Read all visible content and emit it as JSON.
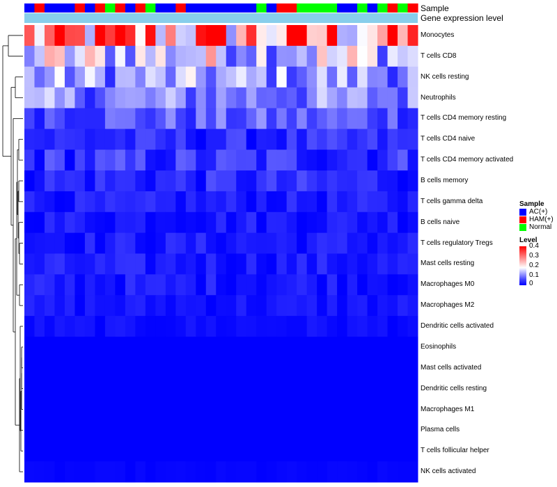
{
  "chart_data": {
    "type": "heatmap",
    "title": "",
    "column_annotation": {
      "name": "Sample",
      "levels": [
        "AC(+)",
        "HAM(+)",
        "Normal"
      ],
      "colors": {
        "AC(+)": "#0000ff",
        "HAM(+)": "#ff0000",
        "Normal": "#00ff00"
      },
      "values": [
        "AC(+)",
        "HAM(+)",
        "AC(+)",
        "AC(+)",
        "AC(+)",
        "HAM(+)",
        "AC(+)",
        "HAM(+)",
        "Normal",
        "HAM(+)",
        "AC(+)",
        "HAM(+)",
        "Normal",
        "AC(+)",
        "AC(+)",
        "HAM(+)",
        "AC(+)",
        "AC(+)",
        "AC(+)",
        "AC(+)",
        "AC(+)",
        "AC(+)",
        "AC(+)",
        "Normal",
        "AC(+)",
        "HAM(+)",
        "HAM(+)",
        "Normal",
        "Normal",
        "Normal",
        "Normal",
        "AC(+)",
        "AC(+)",
        "Normal",
        "AC(+)",
        "Normal",
        "HAM(+)",
        "Normal",
        "HAM(+)"
      ]
    },
    "row_annotation_label": "Gene expression level",
    "row_annotation_color": "#87ceeb",
    "rows": [
      "Monocytes",
      "T cells CD8",
      "NK cells resting",
      "Neutrophils",
      "T cells CD4 memory resting",
      "T cells CD4 naive",
      "T cells CD4 memory activated",
      "B cells memory",
      "T cells gamma delta",
      "B cells naive",
      "T cells regulatory  Tregs",
      "Mast cells resting",
      "Macrophages M0",
      "Macrophages M2",
      "Dendritic cells activated",
      "Eosinophils",
      "Mast cells activated",
      "Dendritic cells resting",
      "Macrophages M1",
      "Plasma cells",
      "T cells follicular helper",
      "NK cells activated"
    ],
    "row_means": [
      0.27,
      0.17,
      0.12,
      0.1,
      0.07,
      0.03,
      0.04,
      0.03,
      0.02,
      0.02,
      0.02,
      0.02,
      0.02,
      0.015,
      0.01,
      0.0,
      0.0,
      0.0,
      0.0,
      0.0,
      0.0,
      0.003
    ],
    "value_range": [
      0,
      0.4
    ],
    "legend": {
      "sample_title": "Sample",
      "sample_entries": [
        "AC(+)",
        "HAM(+)",
        "Normal"
      ],
      "level_title": "Level",
      "level_ticks": [
        "0.4",
        "0.3",
        "0.2",
        "0.1",
        "0"
      ],
      "level_colors": [
        "#ff0000",
        "#ffffff",
        "#0000ff"
      ]
    }
  }
}
